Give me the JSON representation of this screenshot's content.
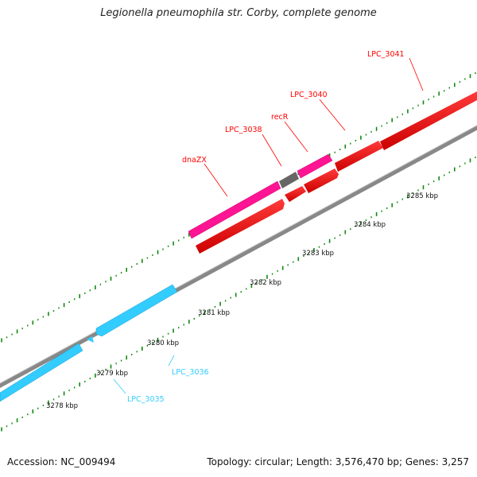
{
  "title": "Legionella pneumophila str. Corby, complete genome",
  "footer": {
    "accession": "Accession: NC_009494",
    "summary": "Topology: circular; Length: 3,576,470 bp; Genes: 3,257"
  },
  "colors": {
    "forward_gene": "#ff0000",
    "reverse_gene": "#33ccff",
    "rna_gene": "#ff1493",
    "other_feature": "#666666",
    "backbone": "#888888",
    "tick": "#118811"
  },
  "scale_labels": [
    "3278 kbp",
    "3279 kbp",
    "3280 kbp",
    "3281 kbp",
    "3282 kbp",
    "3283 kbp",
    "3284 kbp",
    "3285 kbp"
  ],
  "gene_labels": [
    {
      "text": "LPC_3041",
      "strand": "forward"
    },
    {
      "text": "LPC_3040",
      "strand": "forward"
    },
    {
      "text": "recR",
      "strand": "forward"
    },
    {
      "text": "LPC_3038",
      "strand": "forward"
    },
    {
      "text": "dnaZX",
      "strand": "forward"
    },
    {
      "text": "LPC_3036",
      "strand": "reverse"
    },
    {
      "text": "LPC_3035",
      "strand": "reverse"
    }
  ]
}
